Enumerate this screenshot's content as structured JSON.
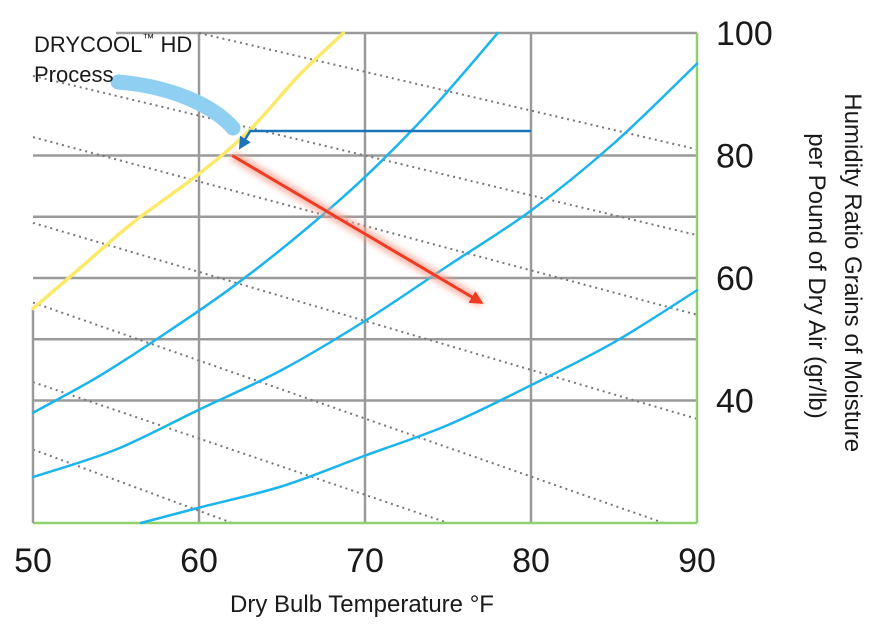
{
  "chart_data": {
    "type": "line",
    "title": "",
    "xlabel": "Dry Bulb Temperature °F",
    "ylabel_lines": [
      "Humidity Ratio Grains of Moisture",
      "per Pound of Dry Air (gr/lb)"
    ],
    "xlim": [
      50,
      90
    ],
    "ylim": [
      20,
      100
    ],
    "x_ticks": [
      50,
      60,
      70,
      80,
      90
    ],
    "y_ticks": [
      40,
      60,
      80,
      100
    ],
    "grid": true,
    "colors": {
      "saturation": "#fbe96a",
      "rh_curves": "#1ab5ec",
      "enthalpy": "#777777",
      "grid": "#9a9a9a",
      "frame": "#8fd16a",
      "process_in": "#1b73b8",
      "process_in_light": "#8fd0f2",
      "process_out": "#ef3b24"
    },
    "series": [
      {
        "role": "saturation",
        "points": [
          [
            50,
            55
          ],
          [
            53,
            62
          ],
          [
            56,
            69
          ],
          [
            60,
            77
          ],
          [
            63,
            84
          ],
          [
            66,
            93
          ],
          [
            68.7,
            100
          ]
        ]
      },
      {
        "role": "rh",
        "points": [
          [
            50,
            38
          ],
          [
            54,
            44
          ],
          [
            58,
            51
          ],
          [
            62,
            58.5
          ],
          [
            66,
            67
          ],
          [
            70,
            76.5
          ],
          [
            74,
            87.5
          ],
          [
            78,
            100
          ]
        ]
      },
      {
        "role": "rh",
        "points": [
          [
            50,
            27.5
          ],
          [
            55,
            32
          ],
          [
            60,
            38.5
          ],
          [
            65,
            45
          ],
          [
            70,
            53
          ],
          [
            75,
            62
          ],
          [
            80,
            71
          ],
          [
            85,
            82
          ],
          [
            90,
            95
          ]
        ]
      },
      {
        "role": "rh",
        "points": [
          [
            56.5,
            20
          ],
          [
            60,
            22.5
          ],
          [
            65,
            26
          ],
          [
            70,
            31
          ],
          [
            75,
            36
          ],
          [
            80,
            42.5
          ],
          [
            85,
            49.5
          ],
          [
            90,
            58
          ]
        ]
      }
    ],
    "enthalpy_lines": [
      [
        [
          60,
          100
        ],
        [
          90,
          81
        ]
      ],
      [
        [
          50,
          93
        ],
        [
          90,
          67
        ]
      ],
      [
        [
          50,
          83
        ],
        [
          90,
          54
        ]
      ],
      [
        [
          50,
          69
        ],
        [
          90,
          37
        ]
      ],
      [
        [
          50,
          56
        ],
        [
          88,
          20
        ]
      ],
      [
        [
          50,
          43
        ],
        [
          75,
          20
        ]
      ],
      [
        [
          50,
          32
        ],
        [
          62,
          20
        ]
      ]
    ],
    "annotations": [
      {
        "name": "drycool-label",
        "lines": [
          "DRYCOOL",
          "™",
          " HD",
          "Process"
        ]
      }
    ],
    "arrows": [
      {
        "role": "incoming",
        "from": [
          80,
          84
        ],
        "to": [
          62,
          84
        ],
        "then_to": [
          62,
          80
        ]
      },
      {
        "role": "outgoing",
        "from": [
          62,
          80
        ],
        "to": [
          77,
          56
        ]
      }
    ]
  }
}
